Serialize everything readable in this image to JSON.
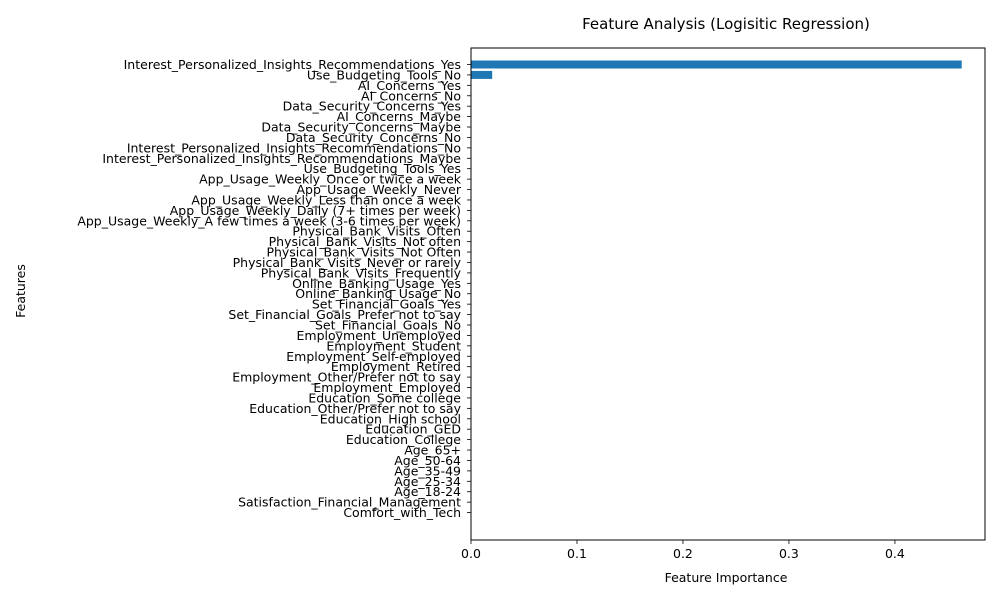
{
  "chart_data": {
    "type": "bar",
    "orientation": "horizontal",
    "title": "Feature Analysis (Logisitic Regression)",
    "xlabel": "Feature Importance",
    "ylabel": "Features",
    "xlim": [
      0,
      0.485
    ],
    "xticks": [
      "0.0",
      "0.1",
      "0.2",
      "0.3",
      "0.4"
    ],
    "grid": false,
    "bar_color": "#1f77b4",
    "categories": [
      "Interest_Personalized_Insights_Recommendations_Yes",
      "Use_Budgeting_Tools_No",
      "AI_Concerns_Yes",
      "AI_Concerns_No",
      "Data_Security_Concerns_Yes",
      "AI_Concerns_Maybe",
      "Data_Security_Concerns_Maybe",
      "Data_Security_Concerns_No",
      "Interest_Personalized_Insights_Recommendations_No",
      "Interest_Personalized_Insights_Recommendations_Maybe",
      "Use_Budgeting_Tools_Yes",
      "App_Usage_Weekly_Once or twice a week",
      "App_Usage_Weekly_Never",
      "App_Usage_Weekly_Less than once a week",
      "App_Usage_Weekly_Daily (7+ times per week)",
      "App_Usage_Weekly_A few times a week (3-6 times per week)",
      "Physical_Bank_Visits_Often",
      "Physical_Bank_Visits_Not often",
      "Physical_Bank_Visits_Not Often",
      "Physical_Bank_Visits_Never or rarely",
      "Physical_Bank_Visits_Frequently",
      "Online_Banking_Usage_Yes",
      "Online_Banking_Usage_No",
      "Set_Financial_Goals_Yes",
      "Set_Financial_Goals_Prefer not to say",
      "Set_Financial_Goals_No",
      "Employment_Unemployed",
      "Employment_Student",
      "Employment_Self-employed",
      "Employment_Retired",
      "Employment_Other/Prefer not to say",
      "Employment_Employed",
      "Education_Some college",
      "Education_Other/Prefer not to say",
      "Education_High school",
      "Education_GED",
      "Education_College",
      "Age_65+",
      "Age_50-64",
      "Age_35-49",
      "Age_25-34",
      "Age_18-24",
      "Satisfaction_Financial_Management",
      "Comfort_with_Tech"
    ],
    "values": [
      0.463,
      0.02,
      0,
      0,
      0,
      0,
      0,
      0,
      0,
      0,
      0,
      0,
      0,
      0,
      0,
      0,
      0,
      0,
      0,
      0,
      0,
      0,
      0,
      0,
      0,
      0,
      0,
      0,
      0,
      0,
      0,
      0,
      0,
      0,
      0,
      0,
      0,
      0,
      0,
      0,
      0,
      0,
      0,
      0
    ]
  }
}
